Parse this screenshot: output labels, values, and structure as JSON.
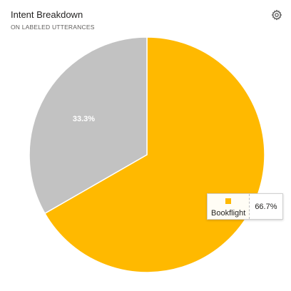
{
  "header": {
    "title": "Intent Breakdown",
    "subtitle": "ON LABELED UTTERANCES",
    "settings_icon": "gear-icon"
  },
  "tooltip": {
    "label": "Bookflight",
    "value": "66.7%",
    "color": "#FFB900"
  },
  "chart_data": {
    "type": "pie",
    "title": "Intent Breakdown",
    "subtitle": "ON LABELED UTTERANCES",
    "slices": [
      {
        "label": "Bookflight",
        "value": 66.7,
        "display": "",
        "color": "#FFB900"
      },
      {
        "label": "",
        "value": 33.3,
        "display": "33.3%",
        "color": "#C2C2C2"
      }
    ],
    "start_angle_deg": 0,
    "direction": "clockwise"
  }
}
